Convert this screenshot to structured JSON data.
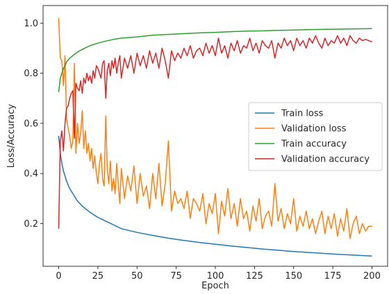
{
  "chart_data": {
    "type": "line",
    "title": "",
    "xlabel": "Epoch",
    "ylabel": "Loss/Accuracy",
    "xlim": [
      -10,
      210
    ],
    "ylim": [
      0.03,
      1.07
    ],
    "x_ticks": [
      0,
      25,
      50,
      75,
      100,
      125,
      150,
      175,
      200
    ],
    "y_ticks": [
      0.2,
      0.4,
      0.6,
      0.8,
      1.0
    ],
    "x_tick_labels": [
      "0",
      "25",
      "50",
      "75",
      "100",
      "125",
      "150",
      "175",
      "200"
    ],
    "y_tick_labels": [
      "0.2",
      "0.4",
      "0.6",
      "0.8",
      "1.0"
    ],
    "grid": false,
    "legend_position": "center-right",
    "series": [
      {
        "name": "Train loss",
        "color": "#1f77b4",
        "x": [
          0,
          1,
          2,
          3,
          4,
          5,
          7,
          10,
          12,
          15,
          20,
          25,
          30,
          35,
          40,
          50,
          60,
          70,
          80,
          90,
          100,
          110,
          120,
          130,
          140,
          150,
          160,
          170,
          180,
          190,
          200
        ],
        "y": [
          0.55,
          0.48,
          0.44,
          0.41,
          0.39,
          0.37,
          0.34,
          0.31,
          0.29,
          0.27,
          0.245,
          0.225,
          0.21,
          0.195,
          0.18,
          0.165,
          0.153,
          0.142,
          0.133,
          0.125,
          0.118,
          0.111,
          0.105,
          0.099,
          0.094,
          0.089,
          0.085,
          0.081,
          0.077,
          0.074,
          0.071
        ]
      },
      {
        "name": "Validation loss",
        "color": "#ff7f0e",
        "x": [
          0,
          1,
          2,
          3,
          4,
          5,
          6,
          7,
          8,
          9,
          10,
          11,
          12,
          13,
          14,
          15,
          16,
          17,
          18,
          19,
          20,
          21,
          22,
          23,
          24,
          25,
          26,
          27,
          28,
          29,
          30,
          31,
          32,
          33,
          34,
          35,
          36,
          37,
          38,
          39,
          40,
          42,
          44,
          46,
          48,
          50,
          52,
          54,
          56,
          58,
          60,
          62,
          64,
          66,
          68,
          70,
          72,
          74,
          76,
          78,
          80,
          82,
          84,
          86,
          88,
          90,
          92,
          94,
          96,
          98,
          100,
          102,
          104,
          106,
          108,
          110,
          112,
          114,
          116,
          118,
          120,
          122,
          124,
          126,
          128,
          130,
          132,
          134,
          136,
          138,
          140,
          142,
          144,
          146,
          148,
          150,
          152,
          154,
          156,
          158,
          160,
          162,
          164,
          166,
          168,
          170,
          172,
          174,
          176,
          178,
          180,
          182,
          184,
          186,
          188,
          190,
          192,
          194,
          196,
          198,
          200
        ],
        "y": [
          1.02,
          0.86,
          0.85,
          0.75,
          0.87,
          0.62,
          0.58,
          0.55,
          0.5,
          0.53,
          0.84,
          0.48,
          0.6,
          0.52,
          0.56,
          0.65,
          0.5,
          0.57,
          0.48,
          0.52,
          0.45,
          0.5,
          0.42,
          0.47,
          0.4,
          0.36,
          0.44,
          0.48,
          0.38,
          0.35,
          0.63,
          0.42,
          0.36,
          0.45,
          0.33,
          0.38,
          0.32,
          0.44,
          0.36,
          0.28,
          0.42,
          0.3,
          0.39,
          0.33,
          0.43,
          0.28,
          0.4,
          0.31,
          0.35,
          0.26,
          0.4,
          0.3,
          0.44,
          0.27,
          0.36,
          0.53,
          0.25,
          0.33,
          0.28,
          0.3,
          0.26,
          0.33,
          0.22,
          0.3,
          0.28,
          0.25,
          0.32,
          0.2,
          0.28,
          0.24,
          0.32,
          0.16,
          0.29,
          0.23,
          0.34,
          0.22,
          0.28,
          0.19,
          0.3,
          0.22,
          0.25,
          0.17,
          0.27,
          0.21,
          0.3,
          0.18,
          0.23,
          0.25,
          0.19,
          0.36,
          0.21,
          0.26,
          0.18,
          0.24,
          0.2,
          0.3,
          0.17,
          0.23,
          0.19,
          0.25,
          0.18,
          0.22,
          0.16,
          0.21,
          0.25,
          0.16,
          0.23,
          0.18,
          0.24,
          0.15,
          0.22,
          0.17,
          0.26,
          0.14,
          0.2,
          0.23,
          0.16,
          0.2,
          0.17,
          0.19,
          0.19
        ]
      },
      {
        "name": "Train accuracy",
        "color": "#2ca02c",
        "x": [
          0,
          1,
          2,
          3,
          4,
          5,
          7,
          10,
          12,
          15,
          20,
          25,
          30,
          35,
          40,
          50,
          60,
          70,
          80,
          90,
          100,
          110,
          120,
          130,
          140,
          150,
          160,
          170,
          180,
          190,
          200
        ],
        "y": [
          0.725,
          0.78,
          0.8,
          0.82,
          0.83,
          0.845,
          0.86,
          0.875,
          0.885,
          0.895,
          0.91,
          0.92,
          0.928,
          0.935,
          0.94,
          0.945,
          0.952,
          0.955,
          0.958,
          0.961,
          0.963,
          0.966,
          0.968,
          0.969,
          0.971,
          0.972,
          0.974,
          0.975,
          0.976,
          0.977,
          0.978
        ]
      },
      {
        "name": "Validation accuracy",
        "color": "#d62728",
        "x": [
          0,
          1,
          2,
          3,
          4,
          5,
          6,
          7,
          8,
          9,
          10,
          11,
          12,
          13,
          14,
          15,
          16,
          17,
          18,
          19,
          20,
          21,
          22,
          23,
          24,
          25,
          26,
          27,
          28,
          29,
          30,
          31,
          32,
          33,
          34,
          35,
          36,
          37,
          38,
          39,
          40,
          42,
          44,
          46,
          48,
          50,
          52,
          54,
          56,
          58,
          60,
          62,
          64,
          66,
          68,
          70,
          72,
          74,
          76,
          78,
          80,
          82,
          84,
          86,
          88,
          90,
          92,
          94,
          96,
          98,
          100,
          102,
          104,
          106,
          108,
          110,
          112,
          114,
          116,
          118,
          120,
          122,
          124,
          126,
          128,
          130,
          132,
          134,
          136,
          138,
          140,
          142,
          144,
          146,
          148,
          150,
          152,
          154,
          156,
          158,
          160,
          162,
          164,
          166,
          168,
          170,
          172,
          174,
          176,
          178,
          180,
          182,
          184,
          186,
          188,
          190,
          192,
          194,
          196,
          198,
          200
        ],
        "y": [
          0.18,
          0.53,
          0.57,
          0.49,
          0.6,
          0.66,
          0.67,
          0.7,
          0.72,
          0.73,
          0.54,
          0.76,
          0.74,
          0.73,
          0.77,
          0.72,
          0.78,
          0.76,
          0.8,
          0.77,
          0.79,
          0.76,
          0.81,
          0.78,
          0.83,
          0.82,
          0.8,
          0.78,
          0.84,
          0.85,
          0.7,
          0.81,
          0.84,
          0.79,
          0.85,
          0.82,
          0.86,
          0.8,
          0.84,
          0.87,
          0.78,
          0.86,
          0.82,
          0.87,
          0.8,
          0.88,
          0.83,
          0.87,
          0.82,
          0.89,
          0.84,
          0.88,
          0.82,
          0.9,
          0.85,
          0.78,
          0.89,
          0.85,
          0.88,
          0.86,
          0.9,
          0.87,
          0.91,
          0.86,
          0.89,
          0.9,
          0.87,
          0.92,
          0.88,
          0.91,
          0.87,
          0.94,
          0.88,
          0.91,
          0.86,
          0.92,
          0.89,
          0.93,
          0.88,
          0.91,
          0.9,
          0.94,
          0.89,
          0.92,
          0.88,
          0.93,
          0.91,
          0.9,
          0.93,
          0.86,
          0.92,
          0.9,
          0.94,
          0.91,
          0.93,
          0.89,
          0.94,
          0.91,
          0.93,
          0.9,
          0.94,
          0.92,
          0.95,
          0.92,
          0.9,
          0.94,
          0.91,
          0.93,
          0.92,
          0.95,
          0.92,
          0.94,
          0.91,
          0.95,
          0.93,
          0.92,
          0.94,
          0.93,
          0.935,
          0.93,
          0.925
        ]
      }
    ]
  }
}
